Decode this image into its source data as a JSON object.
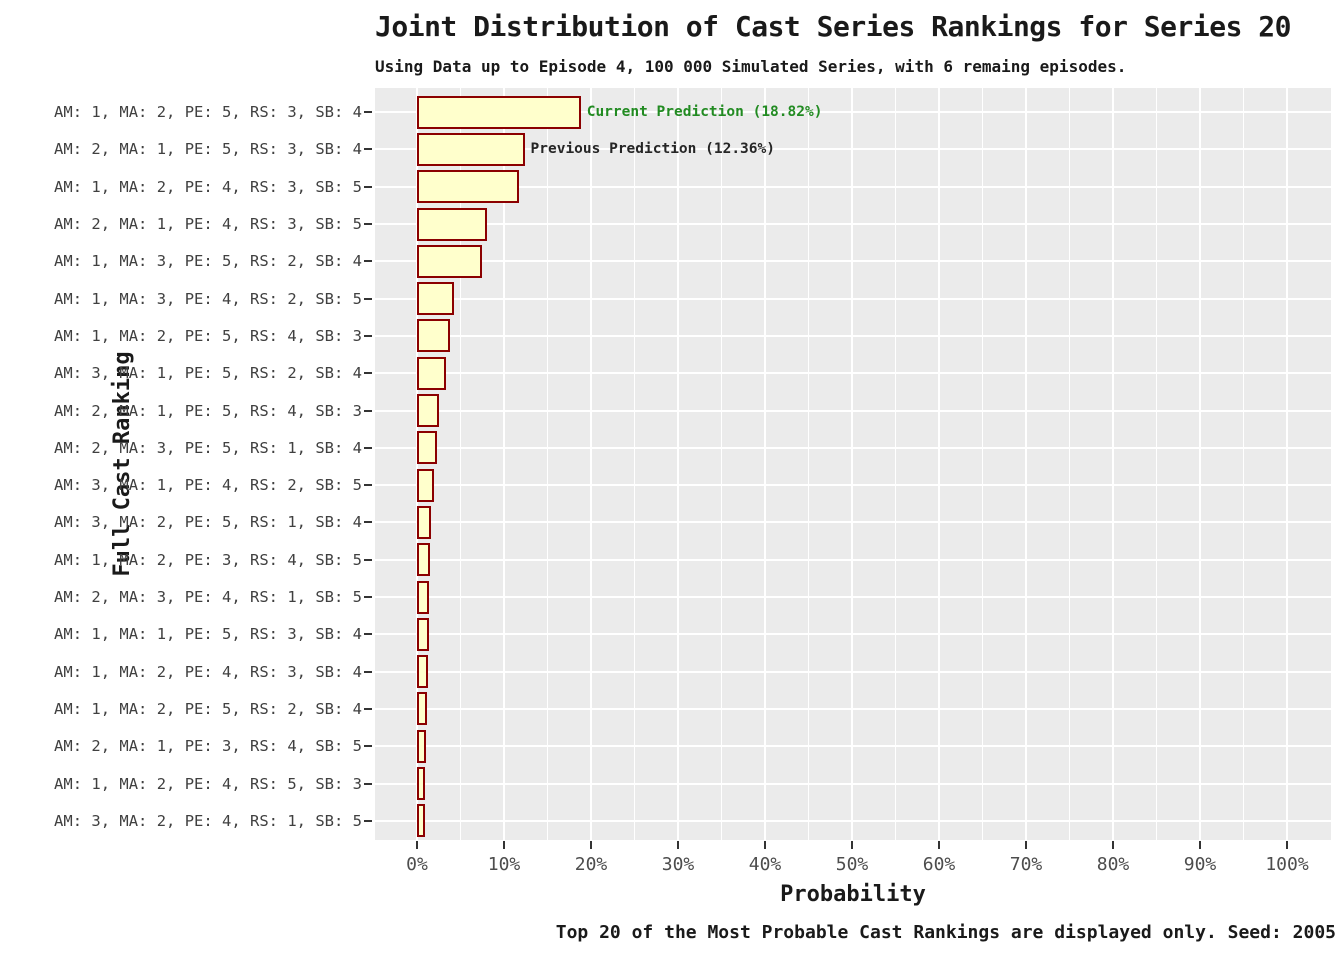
{
  "chart_data": {
    "type": "bar",
    "orientation": "horizontal",
    "title": "Joint Distribution of Cast Series Rankings for Series 20",
    "subtitle": "Using Data up to Episode 4, 100 000 Simulated Series, with 6 remaing episodes.",
    "caption": "Top 20 of the Most Probable Cast Rankings are displayed only. Seed: 2005",
    "xlabel": "Probability",
    "ylabel": "Full Cast Ranking",
    "xlim": [
      0,
      100
    ],
    "x_tick_labels": [
      "0%",
      "10%",
      "20%",
      "30%",
      "40%",
      "50%",
      "60%",
      "70%",
      "80%",
      "90%",
      "100%"
    ],
    "x_major_gridline_step_percent": 10,
    "x_minor_gridline_step_percent": 5,
    "grid": "white gridlines on gray panel",
    "legend_position": "none",
    "categories": [
      "AM: 1, MA: 2, PE: 5, RS: 3, SB: 4",
      "AM: 2, MA: 1, PE: 5, RS: 3, SB: 4",
      "AM: 1, MA: 2, PE: 4, RS: 3, SB: 5",
      "AM: 2, MA: 1, PE: 4, RS: 3, SB: 5",
      "AM: 1, MA: 3, PE: 5, RS: 2, SB: 4",
      "AM: 1, MA: 3, PE: 4, RS: 2, SB: 5",
      "AM: 1, MA: 2, PE: 5, RS: 4, SB: 3",
      "AM: 3, MA: 1, PE: 5, RS: 2, SB: 4",
      "AM: 2, MA: 1, PE: 5, RS: 4, SB: 3",
      "AM: 2, MA: 3, PE: 5, RS: 1, SB: 4",
      "AM: 3, MA: 1, PE: 4, RS: 2, SB: 5",
      "AM: 3, MA: 2, PE: 5, RS: 1, SB: 4",
      "AM: 1, MA: 2, PE: 3, RS: 4, SB: 5",
      "AM: 2, MA: 3, PE: 4, RS: 1, SB: 5",
      "AM: 1, MA: 1, PE: 5, RS: 3, SB: 4",
      "AM: 1, MA: 2, PE: 4, RS: 3, SB: 4",
      "AM: 1, MA: 2, PE: 5, RS: 2, SB: 4",
      "AM: 2, MA: 1, PE: 3, RS: 4, SB: 5",
      "AM: 1, MA: 2, PE: 4, RS: 5, SB: 3",
      "AM: 3, MA: 2, PE: 4, RS: 1, SB: 5"
    ],
    "values": [
      18.82,
      12.36,
      11.7,
      8.0,
      7.45,
      4.2,
      3.8,
      3.3,
      2.5,
      2.35,
      2.0,
      1.65,
      1.45,
      1.4,
      1.35,
      1.25,
      1.1,
      1.05,
      0.95,
      0.9
    ],
    "annotations": [
      {
        "row": 0,
        "text": "Current Prediction (18.82%)",
        "color": "#228B22"
      },
      {
        "row": 1,
        "text": "Previous Prediction (12.36%)",
        "color": "#262626"
      }
    ],
    "colors": {
      "bar_fill": "#FFFFCC",
      "bar_border": "#8B0000",
      "panel_bg": "#EBEBEB",
      "gridline": "#FFFFFF",
      "axis_text": "#4D4D4D",
      "tick_mark": "#333333",
      "text": "#1A1A1A",
      "current_prediction_green": "#228B22"
    }
  }
}
